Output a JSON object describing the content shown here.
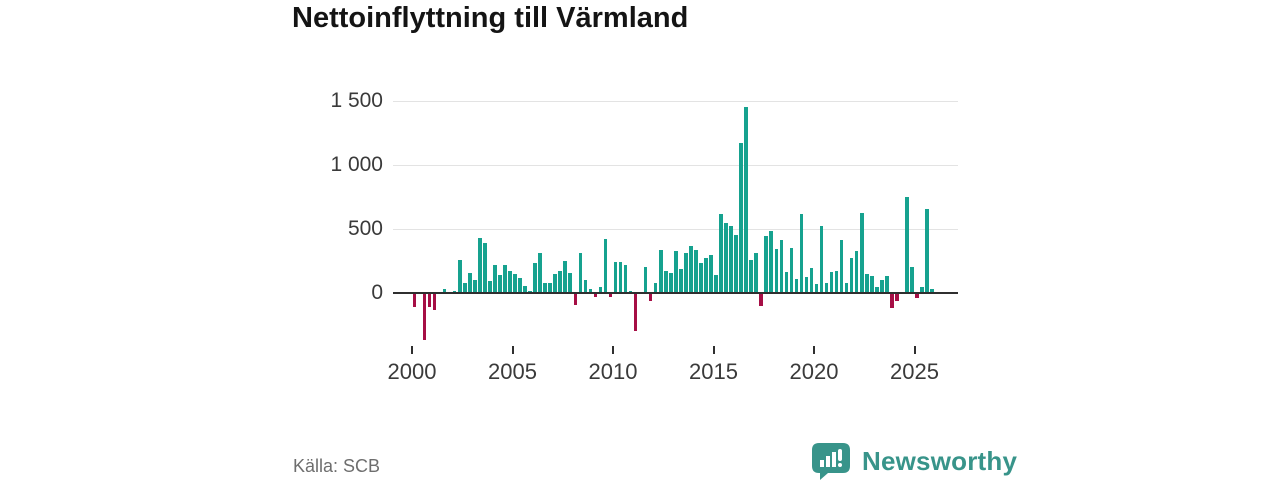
{
  "title": "Nettoinflyttning till Värmland",
  "source": "Källa: SCB",
  "brand": {
    "name": "Newsworthy",
    "color": "#38948a",
    "icon": "bar-chart-speech-bubble"
  },
  "colors": {
    "positive_bar": "#16a28f",
    "negative_bar": "#a60e45",
    "grid": "#e3e3e3",
    "axis": "#2f2f2f",
    "tick_text": "#3a3a3a",
    "muted_text": "#6e6e6e",
    "title_text": "#141414"
  },
  "chart_data": {
    "type": "bar",
    "title": "Nettoinflyttning till Värmland",
    "frequency": "quarterly",
    "x_start": "2000 Q1",
    "x_end": "2025 Q4",
    "grid": "horizontal",
    "legend": "none",
    "ylim": [
      -420,
      1550
    ],
    "y_ticks": [
      {
        "label": "1 500",
        "value": 1500
      },
      {
        "label": "1 000",
        "value": 1000
      },
      {
        "label": "500",
        "value": 500
      },
      {
        "label": "0",
        "value": 0
      }
    ],
    "x_ticks": [
      {
        "label": "2000",
        "year": 2000
      },
      {
        "label": "2005",
        "year": 2005
      },
      {
        "label": "2010",
        "year": 2010
      },
      {
        "label": "2015",
        "year": 2015
      },
      {
        "label": "2020",
        "year": 2020
      },
      {
        "label": "2025",
        "year": 2025
      }
    ],
    "quarters": [
      "2000 Q1",
      "2000 Q2",
      "2000 Q3",
      "2000 Q4",
      "2001 Q1",
      "2001 Q2",
      "2001 Q3",
      "2001 Q4",
      "2002 Q1",
      "2002 Q2",
      "2002 Q3",
      "2002 Q4",
      "2003 Q1",
      "2003 Q2",
      "2003 Q3",
      "2003 Q4",
      "2004 Q1",
      "2004 Q2",
      "2004 Q3",
      "2004 Q4",
      "2005 Q1",
      "2005 Q2",
      "2005 Q3",
      "2005 Q4",
      "2006 Q1",
      "2006 Q2",
      "2006 Q3",
      "2006 Q4",
      "2007 Q1",
      "2007 Q2",
      "2007 Q3",
      "2007 Q4",
      "2008 Q1",
      "2008 Q2",
      "2008 Q3",
      "2008 Q4",
      "2009 Q1",
      "2009 Q2",
      "2009 Q3",
      "2009 Q4",
      "2010 Q1",
      "2010 Q2",
      "2010 Q3",
      "2010 Q4",
      "2011 Q1",
      "2011 Q2",
      "2011 Q3",
      "2011 Q4",
      "2012 Q1",
      "2012 Q2",
      "2012 Q3",
      "2012 Q4",
      "2013 Q1",
      "2013 Q2",
      "2013 Q3",
      "2013 Q4",
      "2014 Q1",
      "2014 Q2",
      "2014 Q3",
      "2014 Q4",
      "2015 Q1",
      "2015 Q2",
      "2015 Q3",
      "2015 Q4",
      "2016 Q1",
      "2016 Q2",
      "2016 Q3",
      "2016 Q4",
      "2017 Q1",
      "2017 Q2",
      "2017 Q3",
      "2017 Q4",
      "2018 Q1",
      "2018 Q2",
      "2018 Q3",
      "2018 Q4",
      "2019 Q1",
      "2019 Q2",
      "2019 Q3",
      "2019 Q4",
      "2020 Q1",
      "2020 Q2",
      "2020 Q3",
      "2020 Q4",
      "2021 Q1",
      "2021 Q2",
      "2021 Q3",
      "2021 Q4",
      "2022 Q1",
      "2022 Q2",
      "2022 Q3",
      "2022 Q4",
      "2023 Q1",
      "2023 Q2",
      "2023 Q3",
      "2023 Q4",
      "2024 Q1",
      "2024 Q2",
      "2024 Q3",
      "2024 Q4",
      "2025 Q1",
      "2025 Q2",
      "2025 Q3",
      "2025 Q4"
    ],
    "values": [
      -110,
      10,
      -365,
      -110,
      -135,
      10,
      30,
      5,
      15,
      255,
      80,
      160,
      105,
      430,
      390,
      95,
      215,
      140,
      215,
      175,
      150,
      120,
      55,
      15,
      235,
      310,
      75,
      80,
      145,
      175,
      250,
      155,
      -95,
      310,
      105,
      30,
      -30,
      50,
      420,
      -35,
      245,
      245,
      220,
      15,
      -300,
      5,
      200,
      -65,
      80,
      335,
      175,
      160,
      325,
      190,
      310,
      370,
      335,
      235,
      270,
      295,
      140,
      615,
      550,
      520,
      450,
      1175,
      1455,
      260,
      310,
      -105,
      445,
      485,
      340,
      415,
      165,
      355,
      110,
      615,
      125,
      195,
      70,
      520,
      80,
      165,
      175,
      415,
      80,
      270,
      325,
      625,
      145,
      130,
      50,
      105,
      130,
      -115,
      -60,
      0,
      750,
      200,
      -40,
      50,
      660,
      35
    ]
  }
}
